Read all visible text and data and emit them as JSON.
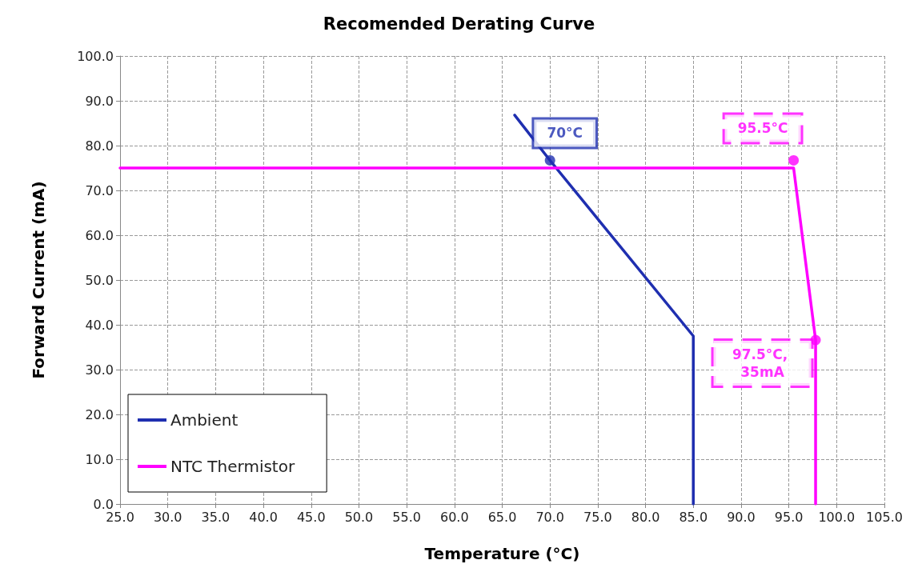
{
  "chart_data": {
    "type": "line",
    "title": "Recomended Derating Curve",
    "xlabel": "Temperature (°C)",
    "ylabel": "Forward Current (mA)",
    "series": [
      {
        "name": "Ambient",
        "color": "#1f2fb0",
        "x": [
          66.3,
          70,
          85,
          85
        ],
        "values": [
          86.8,
          76.7,
          37.5,
          0
        ]
      },
      {
        "name": "NTC Thermistor",
        "color": "#ff00ff",
        "x": [
          25,
          95.5,
          97.8,
          97.8
        ],
        "values": [
          75,
          75,
          36.6,
          0
        ]
      }
    ],
    "annotations": [
      {
        "text": "70°C",
        "x": 70,
        "y": 76.7
      },
      {
        "text": "95.5°C",
        "x": 95.5,
        "y": 76.7
      },
      {
        "text": "97.5°C, 35mA",
        "x": 97.8,
        "y": 36.6
      }
    ],
    "xlim": [
      25,
      105
    ],
    "xticks": [
      {
        "value": 25,
        "label": "25.0"
      },
      {
        "value": 30,
        "label": "30.0"
      },
      {
        "value": 35,
        "label": "35.0"
      },
      {
        "value": 40,
        "label": "40.0"
      },
      {
        "value": 45,
        "label": "45.0"
      },
      {
        "value": 50,
        "label": "50.0"
      },
      {
        "value": 55,
        "label": "55.0"
      },
      {
        "value": 60,
        "label": "60.0"
      },
      {
        "value": 65,
        "label": "65.0"
      },
      {
        "value": 70,
        "label": "70.0"
      },
      {
        "value": 75,
        "label": "75.0"
      },
      {
        "value": 80,
        "label": "80.0"
      },
      {
        "value": 85,
        "label": "85.0"
      },
      {
        "value": 90,
        "label": "90.0"
      },
      {
        "value": 95,
        "label": "95.0"
      },
      {
        "value": 100,
        "label": "100.0"
      },
      {
        "value": 105,
        "label": "105.0"
      }
    ],
    "ylim": [
      0,
      100
    ],
    "yticks": [
      {
        "value": 0,
        "label": "0.0"
      },
      {
        "value": 10,
        "label": "10.0"
      },
      {
        "value": 20,
        "label": "20.0"
      },
      {
        "value": 30,
        "label": "30.0"
      },
      {
        "value": 40,
        "label": "40.0"
      },
      {
        "value": 50,
        "label": "50.0"
      },
      {
        "value": 60,
        "label": "60.0"
      },
      {
        "value": 70,
        "label": "70.0"
      },
      {
        "value": 80,
        "label": "80.0"
      },
      {
        "value": 90,
        "label": "90.0"
      },
      {
        "value": 100,
        "label": "100.0"
      }
    ],
    "grid": true,
    "legend": "bottom left",
    "marker": "none",
    "line_style": "solid"
  }
}
